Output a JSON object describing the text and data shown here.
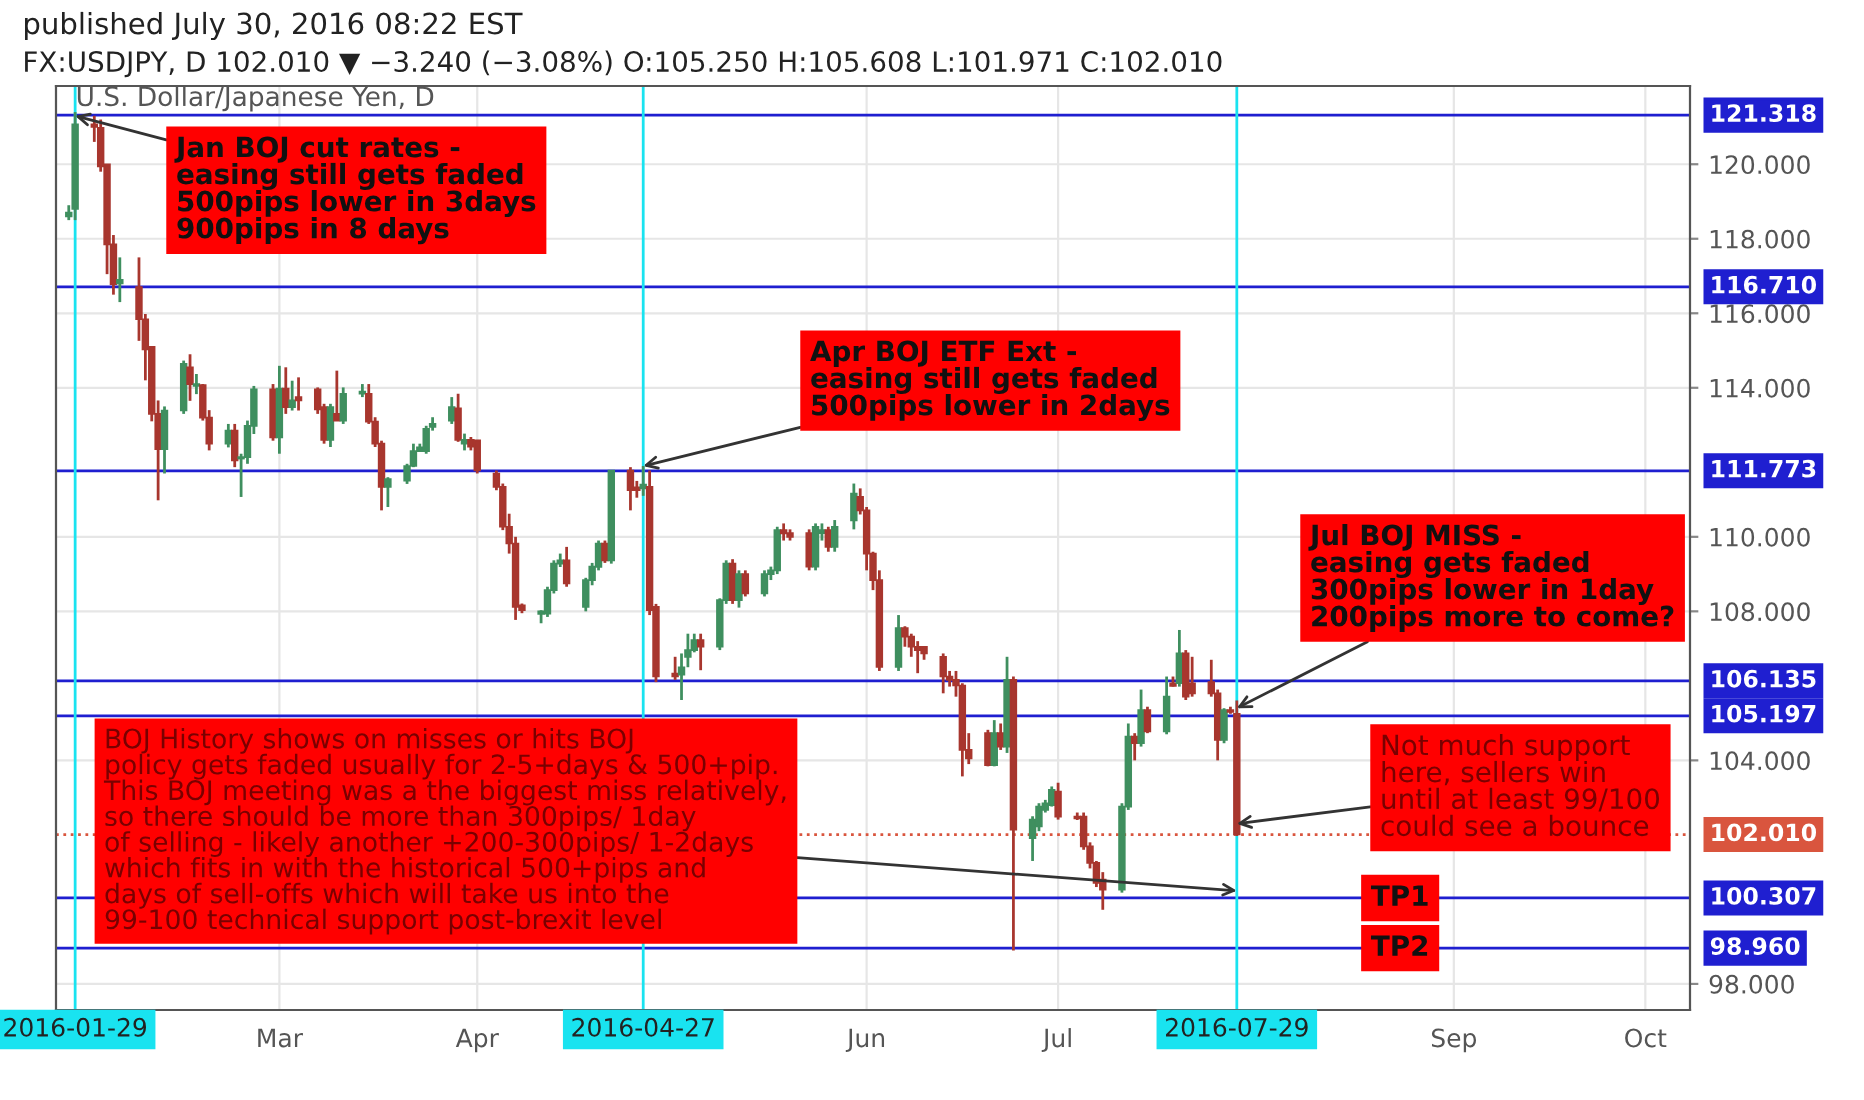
{
  "chart_data": {
    "type": "candlestick",
    "title": "FX:USDJPY, D 102.010 ▼ −3.240 (−3.08%) O:105.250 H:105.608 L:101.971 C:102.010",
    "subtitle": "published July 30, 2016 08:22 EST",
    "x": [
      "2016-01-28",
      "2016-01-29",
      "2016-02-01",
      "2016-02-02",
      "2016-02-03",
      "2016-02-04",
      "2016-02-05",
      "2016-02-08",
      "2016-02-09",
      "2016-02-10",
      "2016-02-11",
      "2016-02-12",
      "2016-02-15",
      "2016-02-16",
      "2016-02-17",
      "2016-02-18",
      "2016-02-19",
      "2016-02-22",
      "2016-02-23",
      "2016-02-24",
      "2016-02-25",
      "2016-02-26",
      "2016-02-29",
      "2016-03-01",
      "2016-03-02",
      "2016-03-03",
      "2016-03-04",
      "2016-03-07",
      "2016-03-08",
      "2016-03-09",
      "2016-03-10",
      "2016-03-11",
      "2016-03-14",
      "2016-03-15",
      "2016-03-16",
      "2016-03-17",
      "2016-03-18",
      "2016-03-21",
      "2016-03-22",
      "2016-03-23",
      "2016-03-24",
      "2016-03-25",
      "2016-03-28",
      "2016-03-29",
      "2016-03-30",
      "2016-03-31",
      "2016-04-01",
      "2016-04-04",
      "2016-04-05",
      "2016-04-06",
      "2016-04-07",
      "2016-04-08",
      "2016-04-11",
      "2016-04-12",
      "2016-04-13",
      "2016-04-14",
      "2016-04-15",
      "2016-04-18",
      "2016-04-19",
      "2016-04-20",
      "2016-04-21",
      "2016-04-22",
      "2016-04-25",
      "2016-04-26",
      "2016-04-27",
      "2016-04-28",
      "2016-04-29",
      "2016-05-02",
      "2016-05-03",
      "2016-05-04",
      "2016-05-05",
      "2016-05-06",
      "2016-05-09",
      "2016-05-10",
      "2016-05-11",
      "2016-05-12",
      "2016-05-13",
      "2016-05-16",
      "2016-05-17",
      "2016-05-18",
      "2016-05-19",
      "2016-05-20",
      "2016-05-23",
      "2016-05-24",
      "2016-05-25",
      "2016-05-26",
      "2016-05-27",
      "2016-05-30",
      "2016-05-31",
      "2016-06-01",
      "2016-06-02",
      "2016-06-03",
      "2016-06-06",
      "2016-06-07",
      "2016-06-08",
      "2016-06-09",
      "2016-06-10",
      "2016-06-13",
      "2016-06-14",
      "2016-06-15",
      "2016-06-16",
      "2016-06-17",
      "2016-06-20",
      "2016-06-21",
      "2016-06-22",
      "2016-06-23",
      "2016-06-24",
      "2016-06-27",
      "2016-06-28",
      "2016-06-29",
      "2016-06-30",
      "2016-07-01",
      "2016-07-04",
      "2016-07-05",
      "2016-07-06",
      "2016-07-07",
      "2016-07-08",
      "2016-07-11",
      "2016-07-12",
      "2016-07-13",
      "2016-07-14",
      "2016-07-15",
      "2016-07-18",
      "2016-07-19",
      "2016-07-20",
      "2016-07-21",
      "2016-07-22",
      "2016-07-25",
      "2016-07-26",
      "2016-07-27",
      "2016-07-28",
      "2016-07-29"
    ],
    "ohlc": [
      [
        118.6,
        118.9,
        118.5,
        118.7
      ],
      [
        118.8,
        121.4,
        118.5,
        121.07
      ],
      [
        121.07,
        121.3,
        120.6,
        121.0
      ],
      [
        120.98,
        121.2,
        119.8,
        119.94
      ],
      [
        120.0,
        120.0,
        117.05,
        117.85
      ],
      [
        117.85,
        118.1,
        116.5,
        116.78
      ],
      [
        116.8,
        117.5,
        116.3,
        116.9
      ],
      [
        116.7,
        117.5,
        115.26,
        115.84
      ],
      [
        115.84,
        115.98,
        114.2,
        115.03
      ],
      [
        115.1,
        115.1,
        113.1,
        113.3
      ],
      [
        113.3,
        113.66,
        110.98,
        112.35
      ],
      [
        112.35,
        113.5,
        111.7,
        113.39
      ],
      [
        113.39,
        114.73,
        113.3,
        114.64
      ],
      [
        114.55,
        114.9,
        113.65,
        114.1
      ],
      [
        114.05,
        114.37,
        113.83,
        114.1
      ],
      [
        114.07,
        114.1,
        113.12,
        113.2
      ],
      [
        113.2,
        113.4,
        112.32,
        112.5
      ],
      [
        112.5,
        113.03,
        112.4,
        112.85
      ],
      [
        112.85,
        113.03,
        111.87,
        112.05
      ],
      [
        112.1,
        112.23,
        111.07,
        112.14
      ],
      [
        112.14,
        113.12,
        111.96,
        112.98
      ],
      [
        112.98,
        114.05,
        112.76,
        113.96
      ],
      [
        113.96,
        114.1,
        112.58,
        112.67
      ],
      [
        112.67,
        114.59,
        112.23,
        113.98
      ],
      [
        113.98,
        114.55,
        113.3,
        113.48
      ],
      [
        113.48,
        114.19,
        113.39,
        113.66
      ],
      [
        113.75,
        114.28,
        113.39,
        113.66
      ],
      [
        113.96,
        114.01,
        113.3,
        113.42
      ],
      [
        113.48,
        113.57,
        112.5,
        112.6
      ],
      [
        112.6,
        113.57,
        112.41,
        113.48
      ],
      [
        113.3,
        114.46,
        113.12,
        113.12
      ],
      [
        113.12,
        114.01,
        113.03,
        113.84
      ],
      [
        113.84,
        114.1,
        113.75,
        113.9
      ],
      [
        113.84,
        114.1,
        113.03,
        113.09
      ],
      [
        113.09,
        113.21,
        112.41,
        112.5
      ],
      [
        112.5,
        112.58,
        110.71,
        111.34
      ],
      [
        111.34,
        111.6,
        110.8,
        111.55
      ],
      [
        111.51,
        111.96,
        111.42,
        111.9
      ],
      [
        111.9,
        112.5,
        111.87,
        112.3
      ],
      [
        112.3,
        112.5,
        112.3,
        112.4
      ],
      [
        112.3,
        112.98,
        112.23,
        112.9
      ],
      [
        112.95,
        113.21,
        112.85,
        113.03
      ],
      [
        113.12,
        113.75,
        113.03,
        113.48
      ],
      [
        113.45,
        113.84,
        112.55,
        112.6
      ],
      [
        112.5,
        112.77,
        112.32,
        112.6
      ],
      [
        112.6,
        112.68,
        112.32,
        112.42
      ],
      [
        112.59,
        112.6,
        111.7,
        111.78
      ],
      [
        111.7,
        111.78,
        111.25,
        111.34
      ],
      [
        111.34,
        111.43,
        110.18,
        110.27
      ],
      [
        110.27,
        110.62,
        109.55,
        109.82
      ],
      [
        109.82,
        110.0,
        107.77,
        108.12
      ],
      [
        108.16,
        108.21,
        107.95,
        108.03
      ],
      [
        107.93,
        108.03,
        107.68,
        108.0
      ],
      [
        107.94,
        108.66,
        107.85,
        108.57
      ],
      [
        108.57,
        109.37,
        108.48,
        109.28
      ],
      [
        109.28,
        109.55,
        109.19,
        109.37
      ],
      [
        109.37,
        109.73,
        108.66,
        108.75
      ],
      [
        108.12,
        108.9,
        108.0,
        108.84
      ],
      [
        108.84,
        109.3,
        108.7,
        109.2
      ],
      [
        109.19,
        109.9,
        109.1,
        109.82
      ],
      [
        109.82,
        109.9,
        109.3,
        109.37
      ],
      [
        109.37,
        111.78,
        109.28,
        111.78
      ],
      [
        111.78,
        111.87,
        110.71,
        111.25
      ],
      [
        111.33,
        111.5,
        111.05,
        111.25
      ],
      [
        111.3,
        111.9,
        111.1,
        111.4
      ],
      [
        111.34,
        111.78,
        107.9,
        108.03
      ],
      [
        108.12,
        108.2,
        106.1,
        106.25
      ],
      [
        106.33,
        106.78,
        106.16,
        106.25
      ],
      [
        106.3,
        106.87,
        105.62,
        106.5
      ],
      [
        106.78,
        107.4,
        106.5,
        106.96
      ],
      [
        106.96,
        107.4,
        106.9,
        107.23
      ],
      [
        107.23,
        107.4,
        106.42,
        107.05
      ],
      [
        107.05,
        108.35,
        106.96,
        108.3
      ],
      [
        108.3,
        109.37,
        108.2,
        109.28
      ],
      [
        109.28,
        109.4,
        108.2,
        108.3
      ],
      [
        108.3,
        109.1,
        108.1,
        109.0
      ],
      [
        109.0,
        109.1,
        108.4,
        108.48
      ],
      [
        108.48,
        109.1,
        108.4,
        109.0
      ],
      [
        109.0,
        109.2,
        108.84,
        109.1
      ],
      [
        109.1,
        110.27,
        109.0,
        110.18
      ],
      [
        110.18,
        110.36,
        109.9,
        110.09
      ],
      [
        110.1,
        110.2,
        109.9,
        110.0
      ],
      [
        110.1,
        110.2,
        109.1,
        109.2
      ],
      [
        109.2,
        110.36,
        109.1,
        110.27
      ],
      [
        110.1,
        110.36,
        109.9,
        110.18
      ],
      [
        110.18,
        110.27,
        109.6,
        109.73
      ],
      [
        109.73,
        110.45,
        109.6,
        110.27
      ],
      [
        110.44,
        111.43,
        110.2,
        111.16
      ],
      [
        111.07,
        111.3,
        110.6,
        110.71
      ],
      [
        110.71,
        110.8,
        109.1,
        109.55
      ],
      [
        109.55,
        109.6,
        108.57,
        108.84
      ],
      [
        108.84,
        109.1,
        106.4,
        106.51
      ],
      [
        106.51,
        107.9,
        106.4,
        107.55
      ],
      [
        107.55,
        107.6,
        107.05,
        107.32
      ],
      [
        107.32,
        107.4,
        106.78,
        107.05
      ],
      [
        107.05,
        107.2,
        106.34,
        106.96
      ],
      [
        107.05,
        107.05,
        106.7,
        106.87
      ],
      [
        106.78,
        106.87,
        105.8,
        106.25
      ],
      [
        106.25,
        106.4,
        105.98,
        106.16
      ],
      [
        106.16,
        106.4,
        105.71,
        106.01
      ],
      [
        106.01,
        106.07,
        103.57,
        104.28
      ],
      [
        104.28,
        104.73,
        103.9,
        104.05
      ],
      [
        104.73,
        104.82,
        103.84,
        103.87
      ],
      [
        103.87,
        105.08,
        103.84,
        104.73
      ],
      [
        104.73,
        104.99,
        104.28,
        104.37
      ],
      [
        104.37,
        106.78,
        104.2,
        106.16
      ],
      [
        106.16,
        106.25,
        98.9,
        102.14
      ],
      [
        101.91,
        102.5,
        101.3,
        102.41
      ],
      [
        102.23,
        102.85,
        102.1,
        102.76
      ],
      [
        102.67,
        102.94,
        102.6,
        102.85
      ],
      [
        102.8,
        103.3,
        102.76,
        103.21
      ],
      [
        103.16,
        103.4,
        102.41,
        102.49
      ],
      [
        102.49,
        102.6,
        102.4,
        102.44
      ],
      [
        102.49,
        102.6,
        101.6,
        101.69
      ],
      [
        101.69,
        101.8,
        101.1,
        101.25
      ],
      [
        101.25,
        101.3,
        100.6,
        100.71
      ],
      [
        100.8,
        101.0,
        99.99,
        100.53
      ],
      [
        100.53,
        102.85,
        100.45,
        102.76
      ],
      [
        102.76,
        104.99,
        102.67,
        104.64
      ],
      [
        104.64,
        104.73,
        104.0,
        104.46
      ],
      [
        104.46,
        105.9,
        104.37,
        105.35
      ],
      [
        105.35,
        105.44,
        104.73,
        104.78
      ],
      [
        104.78,
        106.25,
        104.7,
        105.71
      ],
      [
        106.07,
        106.25,
        105.98,
        106.0
      ],
      [
        106.07,
        107.5,
        105.98,
        106.87
      ],
      [
        106.87,
        106.96,
        105.62,
        105.71
      ],
      [
        106.07,
        106.78,
        105.71,
        105.8
      ],
      [
        106.1,
        106.7,
        105.71,
        105.8
      ],
      [
        105.8,
        105.9,
        104.0,
        104.55
      ],
      [
        104.55,
        105.4,
        104.46,
        105.35
      ],
      [
        105.35,
        105.44,
        105.25,
        105.3
      ],
      [
        105.25,
        105.608,
        101.971,
        102.01
      ]
    ],
    "xlim": [
      "2016-01-26",
      "2016-10-08"
    ],
    "xticks": [
      {
        "value": "2016-03-01",
        "label": "Mar"
      },
      {
        "value": "2016-04-01",
        "label": "Apr"
      },
      {
        "value": "2016-06-01",
        "label": "Jun"
      },
      {
        "value": "2016-07-01",
        "label": "Jul"
      },
      {
        "value": "2016-09-01",
        "label": "Sep"
      },
      {
        "value": "2016-10-01",
        "label": "Oct"
      }
    ],
    "ylim": [
      97.3,
      122.1
    ],
    "yticks": [
      {
        "value": 98,
        "label": "98.000"
      },
      {
        "value": 104,
        "label": "104.000"
      },
      {
        "value": 108,
        "label": "108.000"
      },
      {
        "value": 110,
        "label": "110.000"
      },
      {
        "value": 114,
        "label": "114.000"
      },
      {
        "value": 116,
        "label": "116.000"
      },
      {
        "value": 118,
        "label": "118.000"
      },
      {
        "value": 120,
        "label": "120.000"
      }
    ],
    "grid": true,
    "ref_lines": [
      {
        "axis": "y",
        "value": 121.318,
        "label": "121.318",
        "color": "#1f1fd0"
      },
      {
        "axis": "y",
        "value": 116.71,
        "label": "116.710",
        "color": "#1f1fd0"
      },
      {
        "axis": "y",
        "value": 111.773,
        "label": "111.773",
        "color": "#1f1fd0"
      },
      {
        "axis": "y",
        "value": 106.135,
        "label": "106.135",
        "color": "#1f1fd0"
      },
      {
        "axis": "y",
        "value": 105.197,
        "label": "105.197",
        "color": "#1f1fd0"
      },
      {
        "axis": "y",
        "value": 102.01,
        "label": "102.010",
        "color": "#d9553e",
        "line_style": "dotted"
      },
      {
        "axis": "y",
        "value": 100.307,
        "label": "100.307",
        "color": "#1f1fd0"
      },
      {
        "axis": "y",
        "value": 98.96,
        "label": "98.960",
        "color": "#1f1fd0"
      },
      {
        "axis": "x",
        "value": "2016-01-29",
        "label": "2016-01-29",
        "color": "#19e3f0"
      },
      {
        "axis": "x",
        "value": "2016-04-27",
        "label": "2016-04-27",
        "color": "#19e3f0"
      },
      {
        "axis": "x",
        "value": "2016-07-29",
        "label": "2016-07-29",
        "color": "#19e3f0"
      }
    ],
    "annotations": [
      {
        "text": "Jan BOJ cut rates -\neasing still gets faded\n500pips lower in 3days\n900pips in 8 days",
        "x": "2016-01-29",
        "y": 121.3
      },
      {
        "text": "Apr BOJ ETF Ext -\neasing still gets faded\n500pips lower in 2days",
        "x": "2016-04-27",
        "y": 111.9
      },
      {
        "text": "Jul BOJ MISS -\neasing gets faded\n300pips lower in 1day\n200pips more to come?",
        "x": "2016-07-29",
        "y": 105.4
      },
      {
        "text": "Not much support\nhere, sellers win\nuntil at least 99/100\ncould see a bounce",
        "x": "2016-07-29",
        "y": 102.3
      },
      {
        "text": "BOJ History shows on misses or hits BOJ\npolicy gets faded usually for 2-5+days & 500+pip.\nThis BOJ meeting was a the biggest miss relatively,\nso there should be more than 300pips/ 1day\nof selling - likely another +200-300pips/ 1-2days\nwhich fits in with the historical 500+pips and\ndays of sell-offs which will take us into the\n99-100 technical support post-brexit level",
        "x": "2016-07-29",
        "y": 100.5
      },
      {
        "text": "TP1",
        "x": "2016-08-19",
        "y": 100.307
      },
      {
        "text": "TP2",
        "x": "2016-08-19",
        "y": 98.96
      },
      "U.S. Dollar/Japanese Yen, D"
    ]
  }
}
